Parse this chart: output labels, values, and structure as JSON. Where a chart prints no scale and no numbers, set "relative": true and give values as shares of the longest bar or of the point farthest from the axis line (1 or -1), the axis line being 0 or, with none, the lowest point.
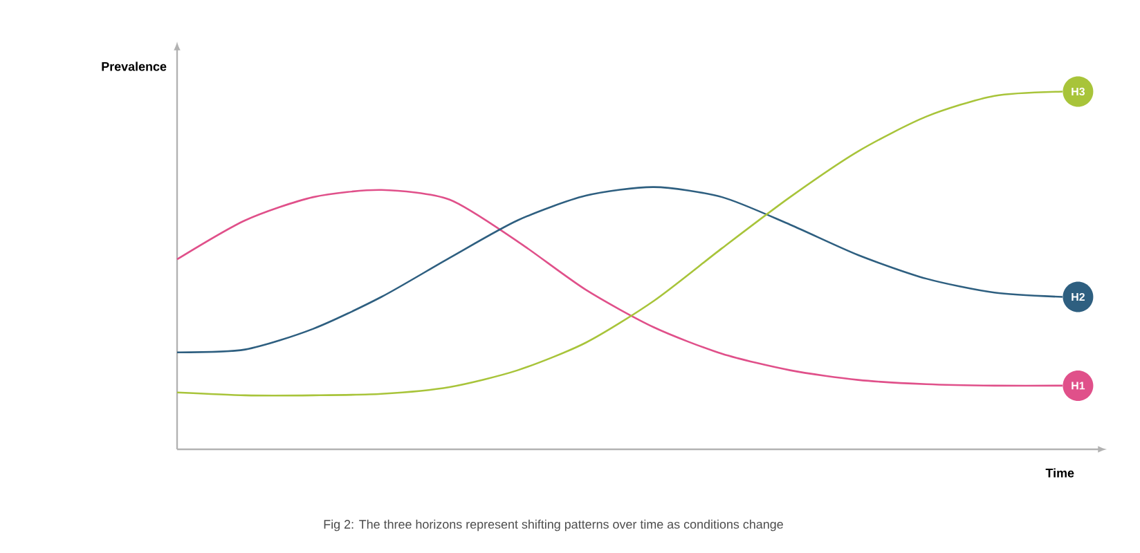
{
  "chart_data": {
    "type": "line",
    "relative": true,
    "xlabel": "Time",
    "ylabel": "Prevalence",
    "annotations": [
      "Fig 2: The three horizons represent shifting patterns over time as conditions change"
    ],
    "categories": [
      null,
      null,
      null,
      null,
      null,
      null,
      null,
      null,
      null,
      null,
      null,
      null,
      null,
      null
    ],
    "series": [
      {
        "name": "H1",
        "color": "#e0508a",
        "values": [
          0.531,
          0.64,
          0.705,
          0.725,
          0.698,
          0.581,
          0.446,
          0.341,
          0.267,
          0.221,
          0.194,
          0.182,
          0.178,
          0.178
        ]
      },
      {
        "name": "H2",
        "color": "#2e5f80",
        "values": [
          0.271,
          0.279,
          0.337,
          0.426,
          0.535,
          0.64,
          0.709,
          0.733,
          0.705,
          0.628,
          0.543,
          0.477,
          0.438,
          0.426
        ]
      },
      {
        "name": "H3",
        "color": "#a8c43a",
        "values": [
          0.159,
          0.151,
          0.151,
          0.155,
          0.174,
          0.221,
          0.298,
          0.415,
          0.562,
          0.705,
          0.833,
          0.93,
          0.988,
          1
        ]
      }
    ]
  }
}
